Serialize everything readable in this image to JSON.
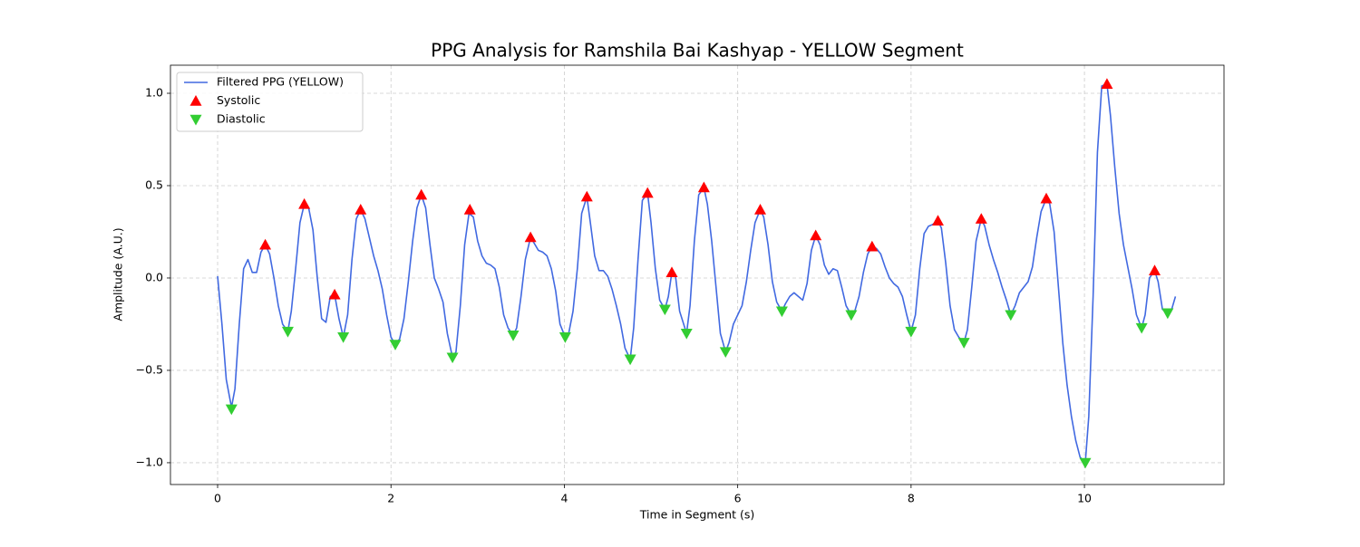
{
  "chart_data": {
    "type": "line",
    "title": "PPG Analysis for Ramshila Bai Kashyap - YELLOW Segment",
    "x_label": "Time in Segment (s)",
    "y_label": "Amplitude (A.U.)",
    "xlim": [
      -0.544,
      11.61
    ],
    "ylim": [
      -1.118,
      1.152
    ],
    "xticks": [
      0,
      2,
      4,
      6,
      8,
      10
    ],
    "yticks": [
      {
        "value": -1.0,
        "label": "−1.0"
      },
      {
        "value": -0.5,
        "label": "−0.5"
      },
      {
        "value": 0.0,
        "label": "0.0"
      },
      0.5,
      {
        "value": 1.0,
        "label": "1.0"
      }
    ],
    "grid": true,
    "legend": "upper left",
    "series": [
      {
        "name": "Filtered PPG (YELLOW)",
        "type": "line",
        "color": "#4169e1",
        "x": [
          0,
          0.05,
          0.1,
          0.16,
          0.2,
          0.25,
          0.3,
          0.35,
          0.4,
          0.45,
          0.5,
          0.55,
          0.6,
          0.65,
          0.7,
          0.75,
          0.81,
          0.85,
          0.9,
          0.95,
          1.0,
          1.05,
          1.1,
          1.15,
          1.2,
          1.25,
          1.3,
          1.35,
          1.4,
          1.45,
          1.5,
          1.55,
          1.6,
          1.65,
          1.7,
          1.75,
          1.8,
          1.85,
          1.9,
          1.95,
          2.0,
          2.05,
          2.1,
          2.15,
          2.2,
          2.25,
          2.3,
          2.35,
          2.4,
          2.45,
          2.5,
          2.55,
          2.6,
          2.65,
          2.71,
          2.75,
          2.8,
          2.85,
          2.9,
          2.95,
          3.0,
          3.05,
          3.1,
          3.15,
          3.2,
          3.25,
          3.3,
          3.35,
          3.41,
          3.45,
          3.5,
          3.55,
          3.61,
          3.65,
          3.7,
          3.75,
          3.8,
          3.85,
          3.9,
          3.95,
          4.01,
          4.05,
          4.1,
          4.15,
          4.2,
          4.26,
          4.3,
          4.35,
          4.4,
          4.45,
          4.5,
          4.55,
          4.6,
          4.65,
          4.7,
          4.76,
          4.8,
          4.85,
          4.9,
          4.96,
          5.0,
          5.05,
          5.1,
          5.16,
          5.2,
          5.24,
          5.28,
          5.33,
          5.41,
          5.45,
          5.5,
          5.55,
          5.61,
          5.65,
          5.7,
          5.75,
          5.8,
          5.86,
          5.9,
          5.95,
          6.0,
          6.05,
          6.1,
          6.15,
          6.2,
          6.26,
          6.3,
          6.35,
          6.4,
          6.45,
          6.51,
          6.55,
          6.6,
          6.65,
          6.7,
          6.75,
          6.8,
          6.85,
          6.9,
          6.95,
          7.0,
          7.05,
          7.1,
          7.15,
          7.2,
          7.25,
          7.31,
          7.35,
          7.4,
          7.45,
          7.5,
          7.55,
          7.6,
          7.65,
          7.7,
          7.75,
          7.8,
          7.85,
          7.9,
          7.95,
          8.0,
          8.05,
          8.1,
          8.15,
          8.2,
          8.25,
          8.31,
          8.35,
          8.4,
          8.45,
          8.5,
          8.55,
          8.61,
          8.65,
          8.7,
          8.75,
          8.81,
          8.85,
          8.9,
          8.95,
          9.0,
          9.05,
          9.1,
          9.15,
          9.2,
          9.25,
          9.3,
          9.35,
          9.4,
          9.45,
          9.5,
          9.56,
          9.6,
          9.65,
          9.7,
          9.75,
          9.8,
          9.85,
          9.9,
          9.95,
          10.01,
          10.05,
          10.1,
          10.15,
          10.2,
          10.26,
          10.3,
          10.35,
          10.4,
          10.45,
          10.5,
          10.55,
          10.6,
          10.66,
          10.7,
          10.75,
          10.81,
          10.85,
          10.9,
          10.96,
          11.0,
          11.05
        ],
        "values": [
          0.01,
          -0.25,
          -0.55,
          -0.7,
          -0.6,
          -0.25,
          0.05,
          0.1,
          0.03,
          0.03,
          0.14,
          0.18,
          0.13,
          0.0,
          -0.15,
          -0.25,
          -0.29,
          -0.18,
          0.05,
          0.3,
          0.4,
          0.38,
          0.26,
          0.0,
          -0.22,
          -0.24,
          -0.1,
          -0.09,
          -0.22,
          -0.32,
          -0.2,
          0.1,
          0.32,
          0.37,
          0.32,
          0.22,
          0.12,
          0.04,
          -0.06,
          -0.2,
          -0.32,
          -0.36,
          -0.33,
          -0.22,
          -0.02,
          0.2,
          0.38,
          0.45,
          0.38,
          0.18,
          0.0,
          -0.06,
          -0.13,
          -0.3,
          -0.43,
          -0.4,
          -0.15,
          0.18,
          0.35,
          0.33,
          0.2,
          0.12,
          0.08,
          0.07,
          0.05,
          -0.05,
          -0.2,
          -0.27,
          -0.31,
          -0.27,
          -0.1,
          0.1,
          0.22,
          0.19,
          0.15,
          0.14,
          0.12,
          0.05,
          -0.07,
          -0.25,
          -0.32,
          -0.3,
          -0.18,
          0.05,
          0.35,
          0.44,
          0.3,
          0.12,
          0.04,
          0.04,
          0.01,
          -0.06,
          -0.15,
          -0.25,
          -0.38,
          -0.44,
          -0.27,
          0.1,
          0.42,
          0.46,
          0.3,
          0.05,
          -0.12,
          -0.17,
          -0.1,
          0.03,
          0.02,
          -0.18,
          -0.3,
          -0.15,
          0.2,
          0.45,
          0.49,
          0.4,
          0.2,
          -0.05,
          -0.3,
          -0.4,
          -0.35,
          -0.25,
          -0.2,
          -0.15,
          -0.02,
          0.15,
          0.3,
          0.37,
          0.33,
          0.18,
          -0.02,
          -0.13,
          -0.18,
          -0.14,
          -0.1,
          -0.08,
          -0.1,
          -0.12,
          -0.03,
          0.15,
          0.23,
          0.18,
          0.07,
          0.02,
          0.05,
          0.04,
          -0.05,
          -0.15,
          -0.2,
          -0.18,
          -0.1,
          0.03,
          0.13,
          0.17,
          0.16,
          0.13,
          0.06,
          0.0,
          -0.03,
          -0.05,
          -0.1,
          -0.2,
          -0.29,
          -0.2,
          0.05,
          0.24,
          0.28,
          0.29,
          0.31,
          0.27,
          0.08,
          -0.15,
          -0.28,
          -0.32,
          -0.35,
          -0.28,
          -0.05,
          0.2,
          0.32,
          0.28,
          0.18,
          0.1,
          0.03,
          -0.05,
          -0.12,
          -0.2,
          -0.15,
          -0.08,
          -0.05,
          -0.02,
          0.06,
          0.22,
          0.36,
          0.43,
          0.4,
          0.25,
          -0.05,
          -0.35,
          -0.58,
          -0.75,
          -0.88,
          -0.97,
          -1.0,
          -0.75,
          -0.1,
          0.68,
          1.04,
          1.05,
          0.88,
          0.6,
          0.35,
          0.18,
          0.06,
          -0.06,
          -0.2,
          -0.27,
          -0.2,
          0.0,
          0.04,
          -0.02,
          -0.17,
          -0.19,
          -0.18,
          -0.1
        ]
      },
      {
        "name": "Systolic",
        "type": "scatter",
        "marker": "triangle-up",
        "color": "#ff0000",
        "x": [
          0.55,
          1.0,
          1.35,
          1.65,
          2.35,
          2.91,
          3.61,
          4.26,
          4.96,
          5.24,
          5.61,
          6.26,
          6.9,
          7.55,
          8.31,
          8.81,
          9.56,
          10.26,
          10.81
        ],
        "values": [
          0.18,
          0.4,
          -0.09,
          0.37,
          0.45,
          0.37,
          0.22,
          0.44,
          0.46,
          0.03,
          0.49,
          0.37,
          0.23,
          0.17,
          0.31,
          0.32,
          0.43,
          1.05,
          0.04
        ]
      },
      {
        "name": "Diastolic",
        "type": "scatter",
        "marker": "triangle-down",
        "color": "#32cd32",
        "x": [
          0.16,
          0.81,
          1.45,
          2.05,
          2.71,
          3.41,
          4.01,
          4.76,
          5.16,
          5.41,
          5.86,
          6.51,
          7.31,
          8.0,
          8.61,
          9.15,
          10.01,
          10.66,
          10.96
        ],
        "values": [
          -0.71,
          -0.29,
          -0.32,
          -0.36,
          -0.43,
          -0.31,
          -0.32,
          -0.44,
          -0.17,
          -0.3,
          -0.4,
          -0.18,
          -0.2,
          -0.29,
          -0.35,
          -0.2,
          -1.0,
          -0.27,
          -0.19
        ]
      }
    ]
  }
}
